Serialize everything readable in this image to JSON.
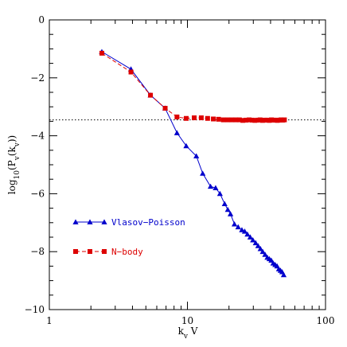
{
  "chart_data": {
    "type": "line",
    "title": "",
    "xlabel": "k_v V",
    "ylabel": "log10(P_v(k_v))",
    "xscale": "log",
    "xlim": [
      1,
      100
    ],
    "ylim": [
      -10,
      0
    ],
    "x_ticks": [
      1,
      10,
      100
    ],
    "x_tick_labels": [
      "1",
      "10",
      "100"
    ],
    "y_ticks": [
      0,
      -2,
      -4,
      -6,
      -8,
      -10
    ],
    "y_tick_labels": [
      "0",
      "−2",
      "−4",
      "−6",
      "−8",
      "−10"
    ],
    "reference_line": {
      "y": -3.45,
      "style": "dotted",
      "color": "#000000"
    },
    "legend_placement": "bottom-left",
    "grid": false,
    "series": [
      {
        "name": "Vlasov−Poisson",
        "color": "#0000cc",
        "marker": "triangle",
        "linestyle": "solid",
        "x": [
          2.4,
          3.9,
          5.4,
          6.9,
          8.4,
          9.8,
          11.6,
          12.9,
          14.7,
          16.0,
          17.2,
          18.6,
          19.6,
          20.5,
          21.9,
          23.3,
          24.8,
          26.0,
          27.2,
          28.5,
          29.8,
          31.2,
          32.5,
          33.8,
          35.1,
          36.5,
          37.9,
          39.2,
          40.5,
          41.8,
          43.2,
          44.6,
          45.9,
          47.2,
          48.5,
          49.8
        ],
        "y": [
          -1.1,
          -1.7,
          -2.6,
          -3.05,
          -3.9,
          -4.35,
          -4.7,
          -5.3,
          -5.75,
          -5.8,
          -6.0,
          -6.35,
          -6.55,
          -6.7,
          -7.05,
          -7.15,
          -7.25,
          -7.3,
          -7.4,
          -7.5,
          -7.6,
          -7.7,
          -7.8,
          -7.9,
          -8.0,
          -8.1,
          -8.2,
          -8.25,
          -8.3,
          -8.4,
          -8.45,
          -8.5,
          -8.6,
          -8.65,
          -8.7,
          -8.8
        ]
      },
      {
        "name": "N−body",
        "color": "#dd0000",
        "marker": "square",
        "linestyle": "dashed",
        "x": [
          2.4,
          3.9,
          5.4,
          6.9,
          8.4,
          9.8,
          11.2,
          12.6,
          14.0,
          15.4,
          16.8,
          18.2,
          19.6,
          21.0,
          22.4,
          23.8,
          25.2,
          26.6,
          28.0,
          29.4,
          30.8,
          32.2,
          33.6,
          35.0,
          36.4,
          37.8,
          39.2,
          40.6,
          42.0,
          43.4,
          44.8,
          46.2,
          47.6,
          49.0,
          50.4
        ],
        "y": [
          -1.15,
          -1.8,
          -2.6,
          -3.05,
          -3.35,
          -3.4,
          -3.38,
          -3.38,
          -3.4,
          -3.42,
          -3.43,
          -3.45,
          -3.45,
          -3.45,
          -3.45,
          -3.45,
          -3.47,
          -3.46,
          -3.45,
          -3.46,
          -3.47,
          -3.46,
          -3.45,
          -3.47,
          -3.46,
          -3.46,
          -3.47,
          -3.45,
          -3.46,
          -3.46,
          -3.47,
          -3.46,
          -3.45,
          -3.46,
          -3.45
        ]
      }
    ]
  }
}
